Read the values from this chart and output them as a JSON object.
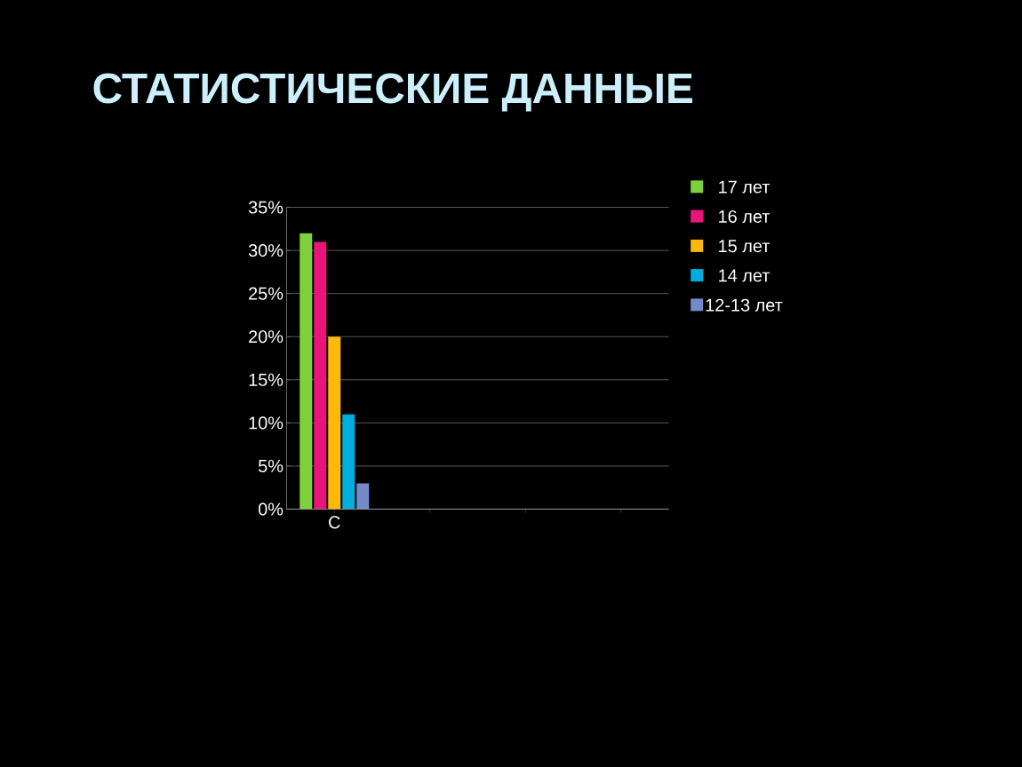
{
  "chart_data": {
    "type": "bar",
    "title": "СТАТИСТИЧЕСКИЕ ДАННЫЕ",
    "categories": [
      "C",
      null,
      null,
      null
    ],
    "series": [
      {
        "name": "17 лет",
        "color": "#7fd13b",
        "values": [
          32,
          null,
          null,
          null
        ]
      },
      {
        "name": "16 лет",
        "color": "#ea157a",
        "values": [
          31,
          null,
          null,
          null
        ]
      },
      {
        "name": "15 лет",
        "color": "#feb80a",
        "values": [
          20,
          null,
          null,
          null
        ]
      },
      {
        "name": "14 лет",
        "color": "#00addc",
        "values": [
          11,
          null,
          null,
          null
        ]
      },
      {
        "name": "12-13 лет",
        "color": "#738ac8",
        "values": [
          3,
          null,
          null,
          null
        ]
      }
    ],
    "ylim": [
      0,
      35
    ],
    "yticks": [
      {
        "value": 0,
        "label": "0%"
      },
      {
        "value": 5,
        "label": "5%"
      },
      {
        "value": 10,
        "label": "10%"
      },
      {
        "value": 15,
        "label": "15%"
      },
      {
        "value": 20,
        "label": "20%"
      },
      {
        "value": 25,
        "label": "25%"
      },
      {
        "value": 30,
        "label": "30%"
      },
      {
        "value": 35,
        "label": "35%"
      }
    ],
    "grid": "y",
    "legend": "top right"
  }
}
